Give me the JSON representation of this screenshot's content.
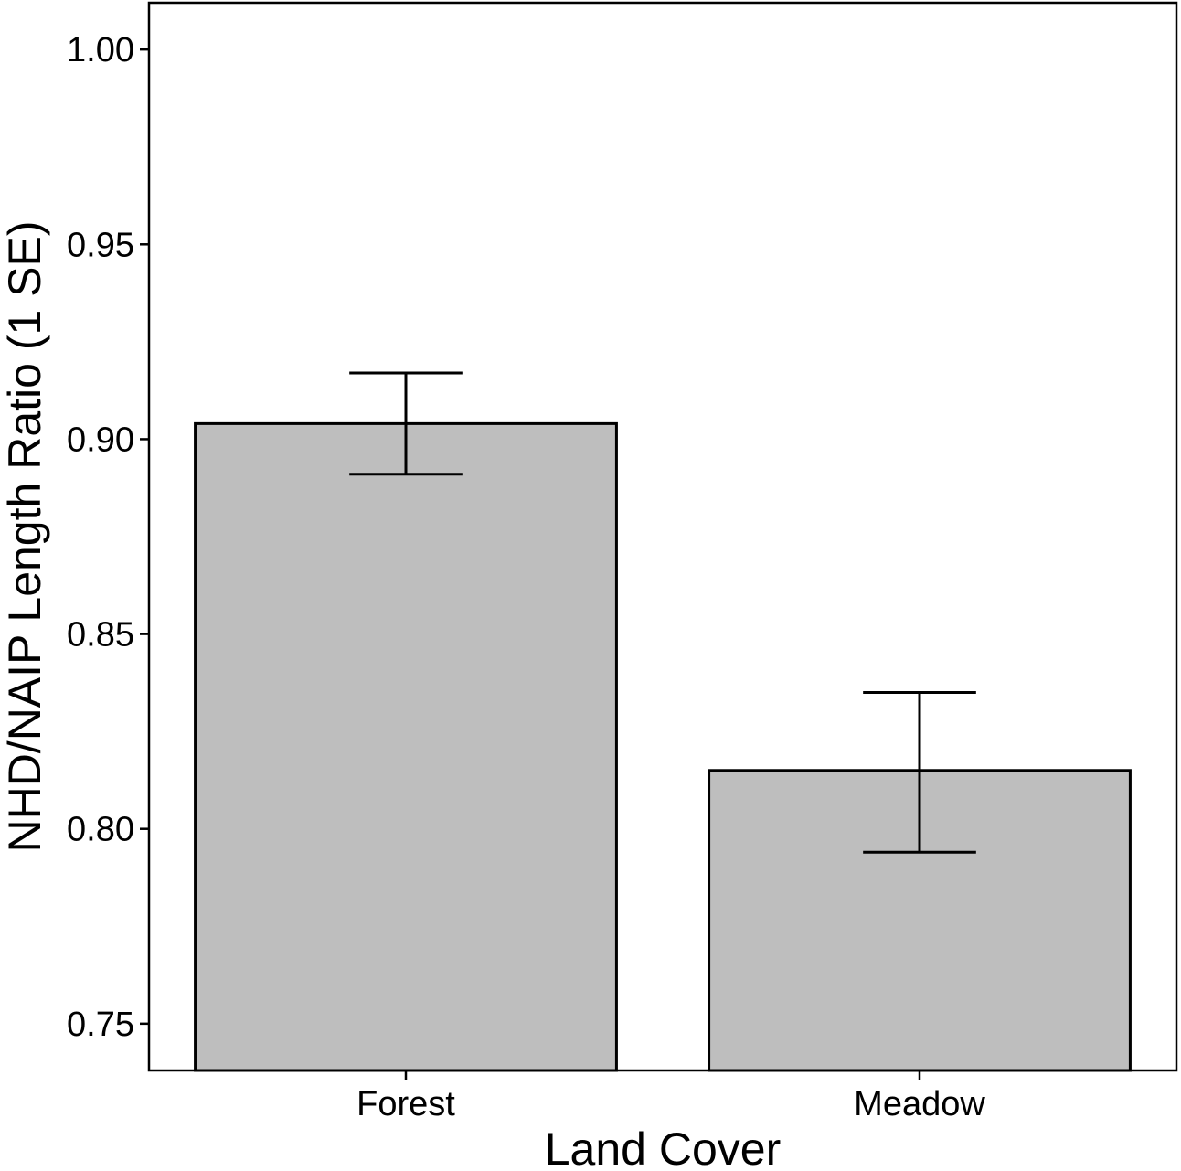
{
  "chart_data": {
    "type": "bar",
    "title": "",
    "xlabel": "Land Cover",
    "ylabel": "NHD/NAIP Length Ratio (1 SE)",
    "categories": [
      "Forest",
      "Meadow"
    ],
    "values": [
      0.904,
      0.815
    ],
    "error_upper": [
      0.917,
      0.835
    ],
    "error_lower": [
      0.891,
      0.794
    ],
    "ylim": [
      0.738,
      1.012
    ],
    "yticks": [
      0.75,
      0.8,
      0.85,
      0.9,
      0.95,
      1.0
    ],
    "ytick_labels": [
      "0.75",
      "0.80",
      "0.85",
      "0.90",
      "0.95",
      "1.00"
    ],
    "grid": false,
    "bar_color": "#bebebe",
    "bar_edge_color": "#000000"
  }
}
